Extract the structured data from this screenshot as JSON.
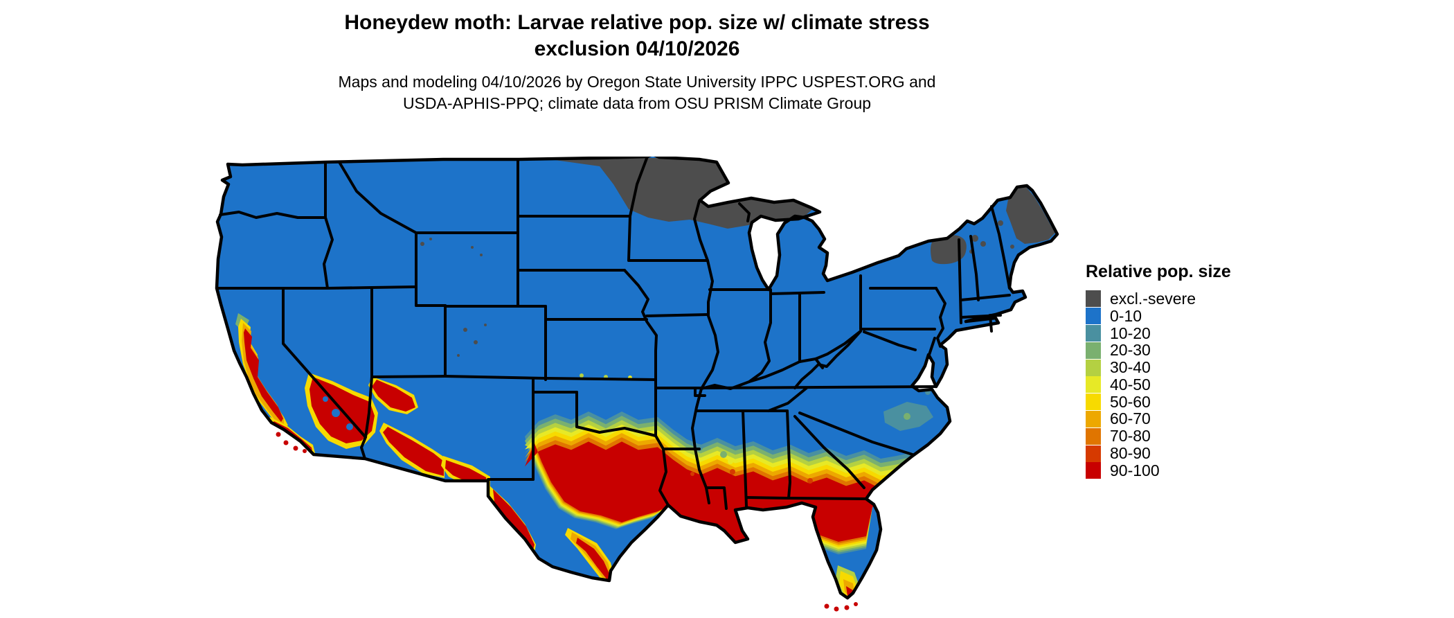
{
  "title": {
    "line1": "Honeydew moth: Larvae relative pop. size w/ climate stress",
    "line2": "exclusion 04/10/2026"
  },
  "subtitle": {
    "line1": "Maps and modeling 04/10/2026 by Oregon State University IPPC USPEST.ORG and",
    "line2": "USDA-APHIS-PPQ; climate data from OSU PRISM Climate Group"
  },
  "map": {
    "region": "Continental United States"
  },
  "legend": {
    "title": "Relative pop. size",
    "items": [
      {
        "label": "excl.-severe",
        "color": "#4d4d4d"
      },
      {
        "label": "0-10",
        "color": "#1d73c9"
      },
      {
        "label": "10-20",
        "color": "#4a90a0"
      },
      {
        "label": "20-30",
        "color": "#7ab06f"
      },
      {
        "label": "30-40",
        "color": "#b4d042"
      },
      {
        "label": "40-50",
        "color": "#e7e926"
      },
      {
        "label": "50-60",
        "color": "#f7da00"
      },
      {
        "label": "60-70",
        "color": "#eda800"
      },
      {
        "label": "70-80",
        "color": "#e07500"
      },
      {
        "label": "80-90",
        "color": "#d63a00"
      },
      {
        "label": "90-100",
        "color": "#c80000"
      }
    ]
  }
}
